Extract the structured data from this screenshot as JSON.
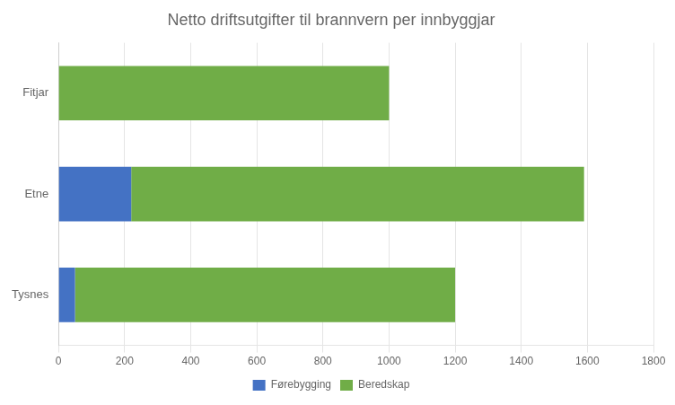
{
  "chart_data": {
    "type": "bar",
    "orientation": "horizontal",
    "stacked": true,
    "title": "Netto driftsutgifter til brannvern per innbyggjar",
    "categories": [
      "Tysnes",
      "Etne",
      "Fitjar"
    ],
    "series": [
      {
        "name": "Førebygging",
        "color": "#4472C4",
        "values": [
          50,
          220,
          0
        ]
      },
      {
        "name": "Beredskap",
        "color": "#70AD47",
        "values": [
          1150,
          1370,
          1000
        ]
      }
    ],
    "xlim": [
      0,
      1800
    ],
    "xticks": [
      0,
      200,
      400,
      600,
      800,
      1000,
      1200,
      1400,
      1600,
      1800
    ],
    "grid": true,
    "legend": "bottom"
  }
}
